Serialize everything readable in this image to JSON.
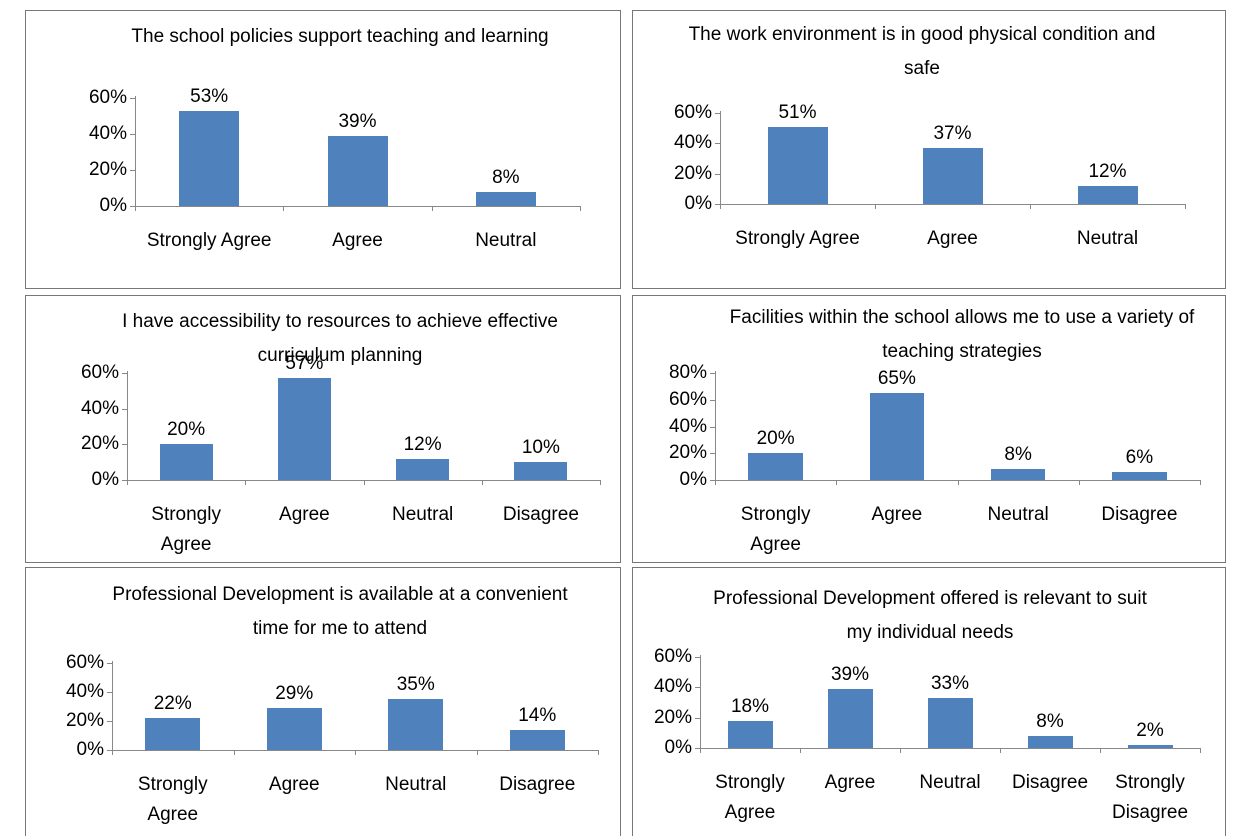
{
  "chart_data": [
    {
      "type": "bar",
      "title": "The school policies support teaching and learning",
      "categories": [
        "Strongly Agree",
        "Agree",
        "Neutral"
      ],
      "values": [
        53,
        39,
        8
      ],
      "value_labels": [
        "53%",
        "39%",
        "8%"
      ],
      "color": "#4f81bd",
      "ylim": [
        0,
        60
      ],
      "yticks": [
        {
          "value": 0,
          "label": "0%"
        },
        {
          "value": 20,
          "label": "20%"
        },
        {
          "value": 40,
          "label": "40%"
        },
        {
          "value": 60,
          "label": "60%"
        }
      ]
    },
    {
      "type": "bar",
      "title": "The work environment is in good physical condition and safe",
      "categories": [
        "Strongly Agree",
        "Agree",
        "Neutral"
      ],
      "values": [
        51,
        37,
        12
      ],
      "value_labels": [
        "51%",
        "37%",
        "12%"
      ],
      "color": "#4f81bd",
      "ylim": [
        0,
        60
      ],
      "yticks": [
        {
          "value": 0,
          "label": "0%"
        },
        {
          "value": 20,
          "label": "20%"
        },
        {
          "value": 40,
          "label": "40%"
        },
        {
          "value": 60,
          "label": "60%"
        }
      ]
    },
    {
      "type": "bar",
      "title": "I have accessibility to resources to achieve effective curriculum planning",
      "categories": [
        "Strongly Agree",
        "Agree",
        "Neutral",
        "Disagree"
      ],
      "values": [
        20,
        57,
        12,
        10
      ],
      "value_labels": [
        "20%",
        "57%",
        "12%",
        "10%"
      ],
      "color": "#4f81bd",
      "ylim": [
        0,
        60
      ],
      "yticks": [
        {
          "value": 0,
          "label": "0%"
        },
        {
          "value": 20,
          "label": "20%"
        },
        {
          "value": 40,
          "label": "40%"
        },
        {
          "value": 60,
          "label": "60%"
        }
      ]
    },
    {
      "type": "bar",
      "title": "Facilities within the school allows me to use a variety of teaching strategies",
      "categories": [
        "Strongly Agree",
        "Agree",
        "Neutral",
        "Disagree"
      ],
      "values": [
        20,
        65,
        8,
        6
      ],
      "value_labels": [
        "20%",
        "65%",
        "8%",
        "6%"
      ],
      "color": "#4f81bd",
      "ylim": [
        0,
        80
      ],
      "yticks": [
        {
          "value": 0,
          "label": "0%"
        },
        {
          "value": 20,
          "label": "20%"
        },
        {
          "value": 40,
          "label": "40%"
        },
        {
          "value": 60,
          "label": "60%"
        },
        {
          "value": 80,
          "label": "80%"
        }
      ]
    },
    {
      "type": "bar",
      "title": "Professional Development is available at a convenient time for me to attend",
      "categories": [
        "Strongly Agree",
        "Agree",
        "Neutral",
        "Disagree"
      ],
      "values": [
        22,
        29,
        35,
        14
      ],
      "value_labels": [
        "22%",
        "29%",
        "35%",
        "14%"
      ],
      "color": "#4f81bd",
      "ylim": [
        0,
        60
      ],
      "yticks": [
        {
          "value": 0,
          "label": "0%"
        },
        {
          "value": 20,
          "label": "20%"
        },
        {
          "value": 40,
          "label": "40%"
        },
        {
          "value": 60,
          "label": "60%"
        }
      ]
    },
    {
      "type": "bar",
      "title": "Professional Development offered is relevant to suit my individual needs",
      "categories": [
        "Strongly Agree",
        "Agree",
        "Neutral",
        "Disagree",
        "Strongly Disagree"
      ],
      "values": [
        18,
        39,
        33,
        8,
        2
      ],
      "value_labels": [
        "18%",
        "39%",
        "33%",
        "8%",
        "2%"
      ],
      "color": "#4f81bd",
      "ylim": [
        0,
        60
      ],
      "yticks": [
        {
          "value": 0,
          "label": "0%"
        },
        {
          "value": 20,
          "label": "20%"
        },
        {
          "value": 40,
          "label": "40%"
        },
        {
          "value": 60,
          "label": "60%"
        }
      ]
    }
  ]
}
